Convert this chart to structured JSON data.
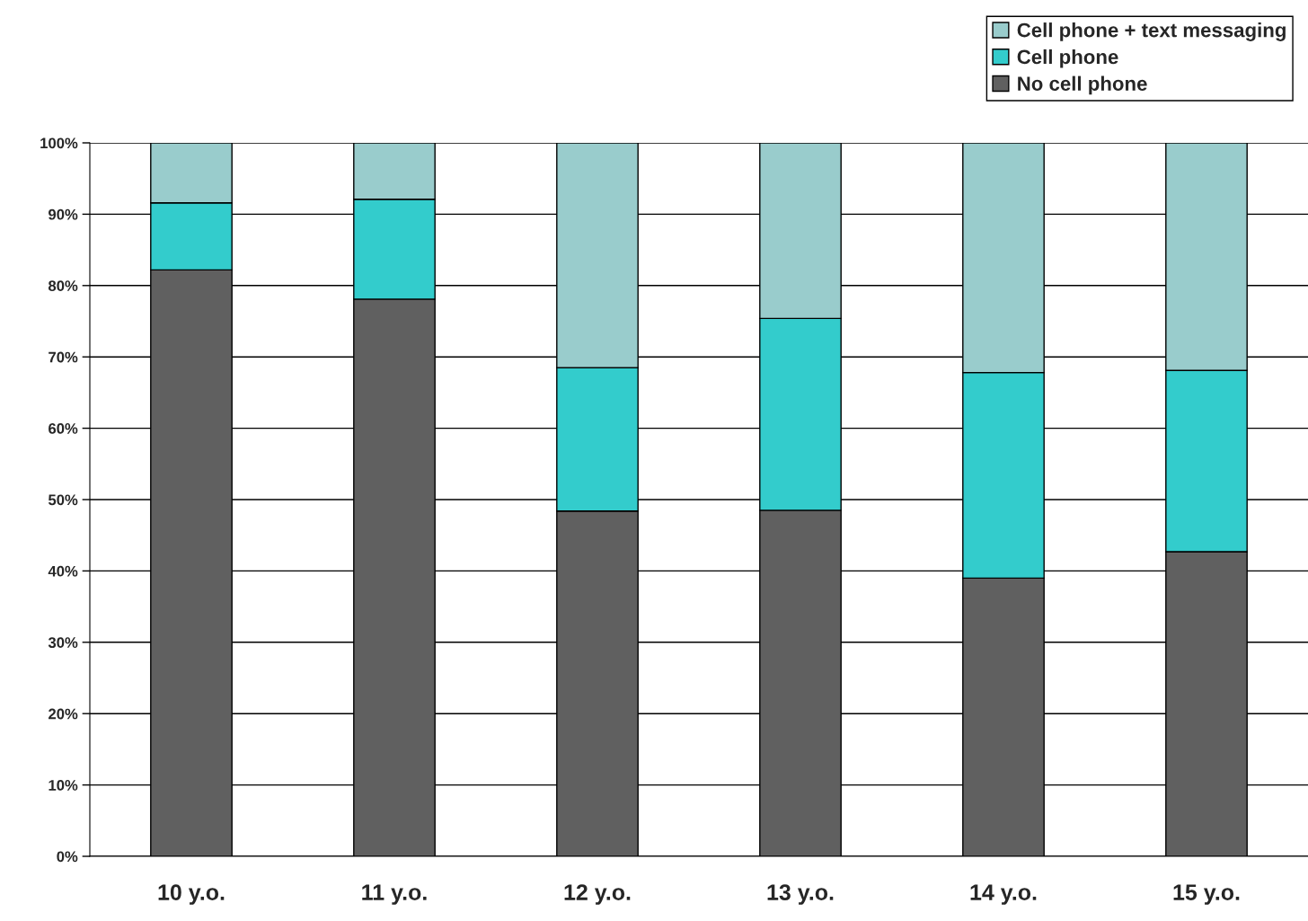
{
  "chart_data": {
    "type": "bar",
    "stacked": true,
    "categories": [
      "10 y.o.",
      "11 y.o.",
      "12 y.o.",
      "13 y.o.",
      "14 y.o.",
      "15 y.o."
    ],
    "series": [
      {
        "name": "No cell phone",
        "color": "#606060",
        "values": [
          82.2,
          78.1,
          48.4,
          48.5,
          39.0,
          42.7
        ]
      },
      {
        "name": "Cell phone",
        "color": "#33cccc",
        "values": [
          9.4,
          14.0,
          20.1,
          26.9,
          28.8,
          25.4
        ]
      },
      {
        "name": "Cell phone + text messaging",
        "color": "#99cccc",
        "values": [
          8.4,
          7.9,
          31.5,
          24.6,
          32.2,
          31.9
        ]
      }
    ],
    "ylim": [
      0,
      100
    ],
    "yticks": [
      {
        "value": 0,
        "label": "0%"
      },
      {
        "value": 10,
        "label": "10%"
      },
      {
        "value": 20,
        "label": "20%"
      },
      {
        "value": 30,
        "label": "30%"
      },
      {
        "value": 40,
        "label": "40%"
      },
      {
        "value": 50,
        "label": "50%"
      },
      {
        "value": 60,
        "label": "60%"
      },
      {
        "value": 70,
        "label": "70%"
      },
      {
        "value": 80,
        "label": "80%"
      },
      {
        "value": 90,
        "label": "90%"
      },
      {
        "value": 100,
        "label": "100%"
      }
    ],
    "grid": "y",
    "legend": "top right"
  }
}
